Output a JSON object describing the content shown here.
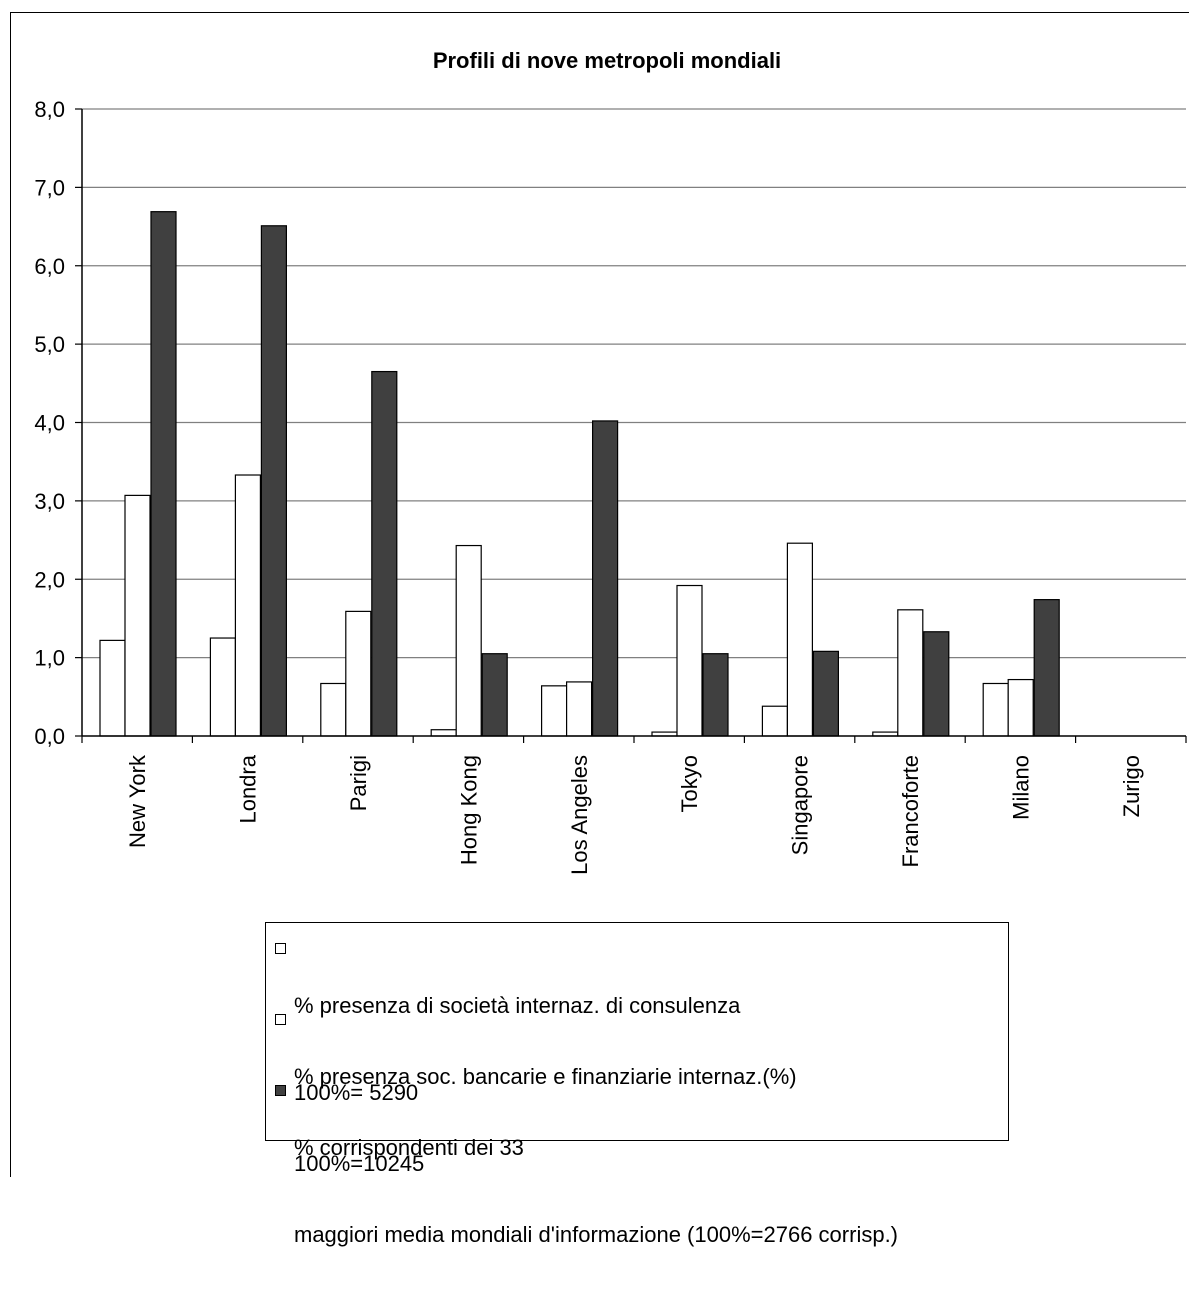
{
  "chart_data": {
    "type": "bar",
    "title": "Profili di nove metropoli mondiali",
    "xlabel": "",
    "ylabel": "",
    "ylim": [
      0,
      8
    ],
    "y_ticks": [
      "0,0",
      "1,0",
      "2,0",
      "3,0",
      "4,0",
      "5,0",
      "6,0",
      "7,0",
      "8,0"
    ],
    "grid": true,
    "legend_position": "bottom",
    "categories": [
      "New York",
      "Londra",
      "Parigi",
      "Hong Kong",
      "Los Angeles",
      "Tokyo",
      "Singapore",
      "Francoforte",
      "Milano",
      "Zurigo"
    ],
    "series": [
      {
        "name": "% presenza di società internaz. di consulenza",
        "name_line2": "100%= 5290",
        "color": "#ffffff",
        "values": [
          1.22,
          1.25,
          0.67,
          0.08,
          0.64,
          0.05,
          0.38,
          0.05,
          0.67,
          null
        ]
      },
      {
        "name": "% presenza soc. bancarie e finanziarie internaz.(%)",
        "name_line2": "100%=10245",
        "color": "#ffffff",
        "values": [
          3.07,
          3.33,
          1.59,
          2.43,
          0.69,
          1.92,
          2.46,
          1.61,
          0.72,
          null
        ]
      },
      {
        "name": "% corrispondenti dei 33",
        "name_line2": "maggiori media mondiali d'informazione (100%=2766 corrisp.)",
        "color": "#404040",
        "values": [
          6.69,
          6.51,
          4.65,
          1.05,
          4.02,
          1.05,
          1.08,
          1.33,
          1.74,
          null
        ]
      }
    ]
  }
}
